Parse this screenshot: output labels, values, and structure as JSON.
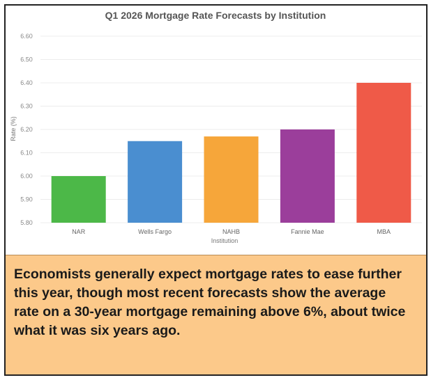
{
  "chart_data": {
    "type": "bar",
    "title": "Q1 2026 Mortgage Rate Forecasts by Institution",
    "xlabel": "Institution",
    "ylabel": "Rate (%)",
    "categories": [
      "NAR",
      "Wells Fargo",
      "NAHB",
      "Fannie Mae",
      "MBA"
    ],
    "values": [
      6.0,
      6.15,
      6.17,
      6.2,
      6.4
    ],
    "colors": [
      "#4cb848",
      "#4a8ed0",
      "#f6a63a",
      "#9b3e9b",
      "#ef5a48"
    ],
    "ylim": [
      5.8,
      6.6
    ],
    "yticks": [
      "5.80",
      "5.90",
      "6.00",
      "6.10",
      "6.20",
      "6.30",
      "6.40",
      "6.50",
      "6.60"
    ],
    "grid": true,
    "legend": "none"
  },
  "caption": {
    "text": " Economists generally expect mortgage rates to ease further this year, though most recent forecasts show the average rate on a 30-year mortgage remaining above 6%, about twice what it was six years ago."
  }
}
